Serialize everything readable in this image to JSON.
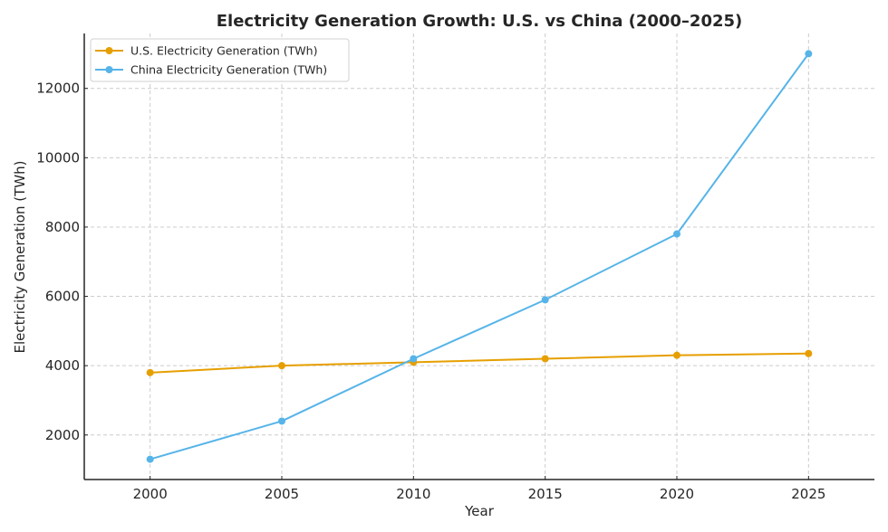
{
  "chart_data": {
    "type": "line",
    "title": "Electricity Generation Growth: U.S. vs China (2000–2025)",
    "xlabel": "Year",
    "ylabel": "Electricity Generation (TWh)",
    "x": [
      2000,
      2005,
      2010,
      2015,
      2020,
      2025
    ],
    "xticks": [
      "2000",
      "2005",
      "2010",
      "2015",
      "2020",
      "2025"
    ],
    "yticks": [
      "2000",
      "4000",
      "6000",
      "8000",
      "10000",
      "12000"
    ],
    "ytick_values": [
      2000,
      4000,
      6000,
      8000,
      10000,
      12000
    ],
    "xlim": [
      1997.5,
      2027.5
    ],
    "ylim": [
      715,
      13585
    ],
    "grid": true,
    "legend_position": "top-left",
    "series": [
      {
        "name": "U.S. Electricity Generation (TWh)",
        "color": "#E69F00",
        "marker": "circle",
        "values": [
          3800,
          4000,
          4100,
          4200,
          4300,
          4350
        ]
      },
      {
        "name": "China Electricity Generation (TWh)",
        "color": "#56B4E9",
        "marker": "circle",
        "values": [
          1300,
          2400,
          4200,
          5900,
          7800,
          13000
        ]
      }
    ]
  }
}
